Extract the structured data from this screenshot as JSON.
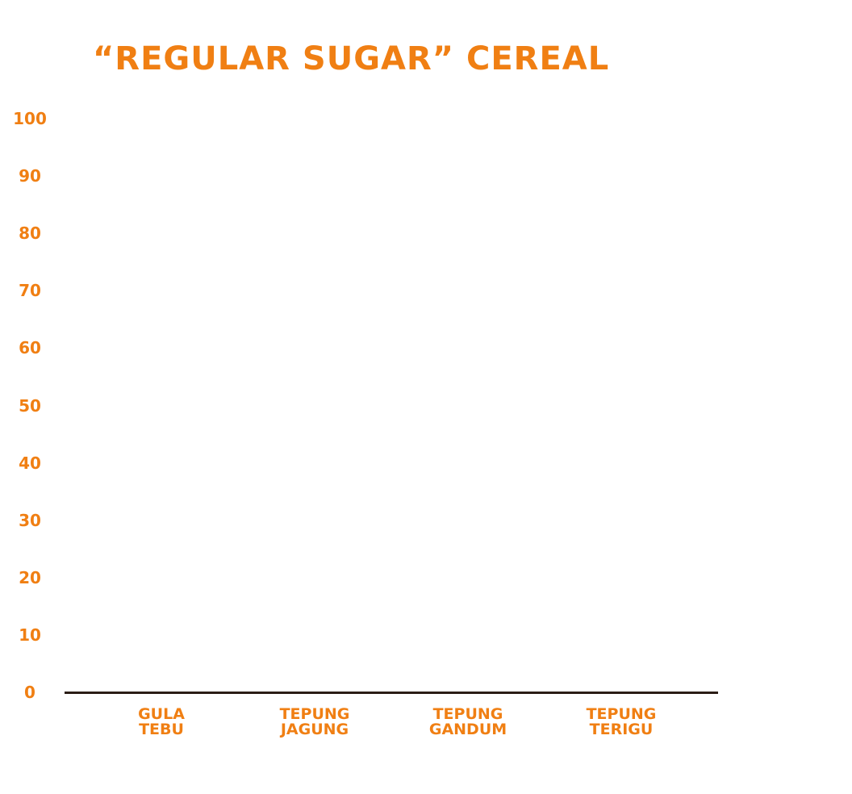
{
  "chart_data": {
    "type": "bar",
    "title": "“REGULAR SUGAR” CEREAL",
    "categories": [
      "GULA TEBU",
      "TEPUNG JAGUNG",
      "TEPUNG GANDUM",
      "TEPUNG TERIGU"
    ],
    "color": "#f07f13",
    "ylim": [
      0,
      100
    ],
    "yticks": [
      0,
      10,
      20,
      30,
      40,
      50,
      60,
      70,
      80,
      90,
      100
    ],
    "grid": false
  }
}
